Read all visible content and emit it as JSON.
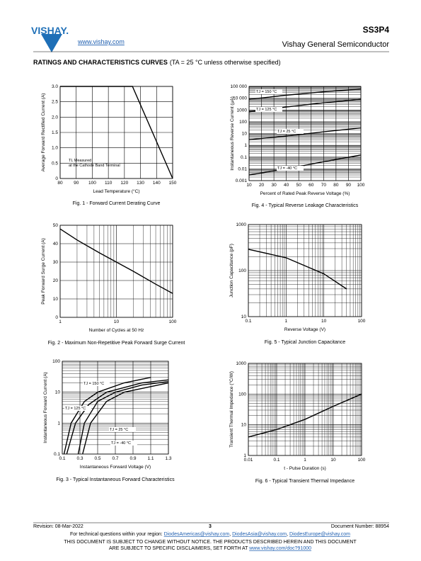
{
  "header": {
    "logo_text": "VISHAY.",
    "website": "www.vishay.com",
    "part_number": "SS3P4",
    "company": "Vishay General Semiconductor"
  },
  "section_title": "RATINGS AND CHARACTERISTICS CURVES",
  "section_condition": "(TA = 25 °C unless otherwise specified)",
  "chart_data": [
    {
      "type": "line",
      "title": "Fig. 1 - Forward Current Derating Curve",
      "x_label": "Lead Temperature (°C)",
      "y_label": "Average Forward Rectified Current (A)",
      "xlim": [
        80,
        150
      ],
      "ylim": [
        0,
        3
      ],
      "xticks": [
        80,
        90,
        100,
        110,
        120,
        130,
        140,
        150
      ],
      "yticks": [
        0,
        0.5,
        {
          "value": 1,
          "label": "1.0"
        },
        1.5,
        {
          "value": 2,
          "label": "2.0"
        },
        2.5,
        {
          "value": 3,
          "label": "3.0"
        }
      ],
      "grid": true,
      "annotations": [
        "TL Measured",
        "at the Cathode Band Terminal"
      ],
      "series": [
        {
          "color": "#000000",
          "x": [
            80,
            125,
            150
          ],
          "values": [
            3,
            3,
            0
          ]
        }
      ]
    },
    {
      "type": "line",
      "title": "Fig. 4 - Typical Reverse Leakage Characteristics",
      "x_label": "Percent of Rated Peak Reverse Voltage (%)",
      "y_label": "Instantaneous Reverse Current (µA)",
      "xlim": [
        10,
        100
      ],
      "ylim": [
        0.001,
        100000
      ],
      "ylog": true,
      "xticks": [
        10,
        20,
        30,
        40,
        50,
        60,
        70,
        80,
        90,
        100
      ],
      "yticks": [
        0.001,
        0.01,
        0.1,
        1,
        10,
        100,
        1000,
        {
          "value": 10000,
          "label": "10 000"
        },
        {
          "value": 100000,
          "label": "100 000"
        }
      ],
      "grid": true,
      "series": [
        {
          "name": "TJ = 150 °C",
          "color": "#000000",
          "x": [
            10,
            40,
            70,
            100
          ],
          "values": [
            8000,
            18000,
            35000,
            60000
          ]
        },
        {
          "name": "TJ = 125 °C",
          "color": "#000000",
          "x": [
            10,
            40,
            70,
            100
          ],
          "values": [
            700,
            1800,
            4000,
            8000
          ]
        },
        {
          "name": "TJ = 25 °C",
          "color": "#000000",
          "x": [
            10,
            40,
            70,
            100
          ],
          "values": [
            3,
            6,
            14,
            30
          ]
        },
        {
          "name": "TJ = -40 °C",
          "color": "#000000",
          "x": [
            10,
            40,
            70,
            100
          ],
          "values": [
            0.003,
            0.01,
            0.04,
            0.15
          ]
        }
      ]
    },
    {
      "type": "line",
      "title": "Fig. 2 - Maximum Non-Repetitive Peak Forward Surge Current",
      "x_label": "Number of Cycles at 50 Hz",
      "y_label": "Peak Forward Surge Current (A)",
      "xlim": [
        1,
        100
      ],
      "ylim": [
        0,
        50
      ],
      "xlog": true,
      "xticks": [
        1,
        10,
        100
      ],
      "yticks": [
        0,
        10,
        20,
        30,
        40,
        50
      ],
      "grid": true,
      "series": [
        {
          "color": "#000000",
          "x": [
            1,
            2,
            5,
            10,
            20,
            50,
            100
          ],
          "values": [
            48,
            42,
            35,
            30,
            25,
            18,
            13
          ]
        }
      ]
    },
    {
      "type": "line",
      "title": "Fig. 5 - Typical Junction Capacitance",
      "x_label": "Reverse Voltage (V)",
      "y_label": "Junction Capacitance (pF)",
      "xlim": [
        0.1,
        100
      ],
      "ylim": [
        10,
        1000
      ],
      "xlog": true,
      "ylog": true,
      "xticks": [
        0.1,
        1,
        10,
        100
      ],
      "yticks": [
        10,
        100,
        1000
      ],
      "grid": true,
      "series": [
        {
          "color": "#000000",
          "x": [
            0.1,
            1,
            10,
            40
          ],
          "values": [
            290,
            190,
            85,
            40
          ]
        }
      ]
    },
    {
      "type": "line",
      "title": "Fig. 3 - Typical Instantaneous Forward Characteristics",
      "x_label": "Instantaneous Forward Voltage (V)",
      "y_label": "Instantaneous Forward Current (A)",
      "xlim": [
        0.1,
        1.3
      ],
      "ylim": [
        0.1,
        100
      ],
      "ylog": true,
      "xticks": [
        0.1,
        0.3,
        0.5,
        0.7,
        0.9,
        1.1,
        1.3
      ],
      "yticks": [
        0.1,
        1,
        10,
        100
      ],
      "grid": true,
      "series": [
        {
          "name": "TJ = 150 °C",
          "color": "#000000",
          "x": [
            0.12,
            0.2,
            0.35,
            0.5,
            0.8,
            1.1
          ],
          "values": [
            0.1,
            1,
            5,
            10,
            20,
            30
          ]
        },
        {
          "name": "TJ = 125 °C",
          "color": "#000000",
          "x": [
            0.15,
            0.25,
            0.4,
            0.6,
            1,
            1.3
          ],
          "values": [
            0.1,
            1,
            4,
            10,
            20,
            25
          ]
        },
        {
          "name": "TJ = 25 °C",
          "color": "#000000",
          "x": [
            0.28,
            0.35,
            0.5,
            0.7,
            1,
            1.3
          ],
          "values": [
            0.1,
            1,
            5,
            10,
            17,
            22
          ]
        },
        {
          "name": "TJ = -40 °C",
          "color": "#000000",
          "x": [
            0.33,
            0.42,
            0.6,
            0.8,
            1.3
          ],
          "values": [
            0.1,
            1,
            5,
            10,
            20
          ]
        }
      ]
    },
    {
      "type": "line",
      "title": "Fig. 6 - Typical Transient Thermal Impedance",
      "x_label": "t - Pulse Duration (s)",
      "y_label": "Transient Thermal Impedance (°C/W)",
      "xlim": [
        0.01,
        100
      ],
      "ylim": [
        1,
        1000
      ],
      "xlog": true,
      "ylog": true,
      "xticks": [
        0.01,
        0.1,
        1,
        10,
        100
      ],
      "yticks": [
        1,
        10,
        100,
        1000
      ],
      "grid": true,
      "series": [
        {
          "color": "#000000",
          "x": [
            0.01,
            0.1,
            1,
            10,
            100
          ],
          "values": [
            4,
            7,
            15,
            40,
            100
          ]
        }
      ]
    }
  ],
  "footer": {
    "revision": "Revision: 08-Mar-2022",
    "page": "3",
    "document_number": "Document Number: 88954",
    "questions": "For technical questions within your region: ",
    "emails": [
      "DiodesAmericas@vishay.com",
      "DiodesAsia@vishay.com",
      "DiodesEurope@vishay.com"
    ],
    "disclaimer_1": "THIS DOCUMENT IS SUBJECT TO CHANGE WITHOUT NOTICE. THE PRODUCTS DESCRIBED HEREIN AND THIS DOCUMENT",
    "disclaimer_2": "ARE SUBJECT TO SPECIFIC DISCLAIMERS, SET FORTH AT ",
    "disclaimer_link": "www.vishay.com/doc?91000"
  }
}
